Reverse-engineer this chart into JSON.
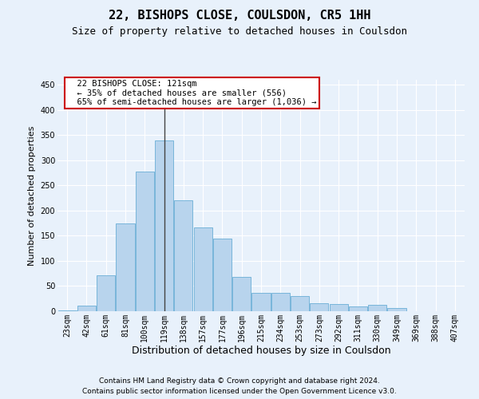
{
  "title": "22, BISHOPS CLOSE, COULSDON, CR5 1HH",
  "subtitle": "Size of property relative to detached houses in Coulsdon",
  "xlabel": "Distribution of detached houses by size in Coulsdon",
  "ylabel": "Number of detached properties",
  "footer_line1": "Contains HM Land Registry data © Crown copyright and database right 2024.",
  "footer_line2": "Contains public sector information licensed under the Open Government Licence v3.0.",
  "categories": [
    "23sqm",
    "42sqm",
    "61sqm",
    "81sqm",
    "100sqm",
    "119sqm",
    "138sqm",
    "157sqm",
    "177sqm",
    "196sqm",
    "215sqm",
    "234sqm",
    "253sqm",
    "273sqm",
    "292sqm",
    "311sqm",
    "330sqm",
    "349sqm",
    "369sqm",
    "388sqm",
    "407sqm"
  ],
  "values": [
    2,
    11,
    72,
    175,
    277,
    340,
    221,
    167,
    145,
    68,
    36,
    36,
    30,
    16,
    15,
    10,
    12,
    6,
    0,
    0,
    0
  ],
  "bar_color": "#b8d4ed",
  "bar_edge_color": "#6aaed6",
  "property_bar_index": 5,
  "annotation_line1": "22 BISHOPS CLOSE: 121sqm",
  "annotation_line2": "← 35% of detached houses are smaller (556)",
  "annotation_line3": "65% of semi-detached houses are larger (1,036) →",
  "annotation_box_color": "#cc0000",
  "vline_color": "#444444",
  "ylim": [
    0,
    460
  ],
  "yticks": [
    0,
    50,
    100,
    150,
    200,
    250,
    300,
    350,
    400,
    450
  ],
  "background_color": "#e8f1fb",
  "plot_bg_color": "#e8f1fb",
  "grid_color": "#ffffff",
  "title_fontsize": 11,
  "subtitle_fontsize": 9,
  "xlabel_fontsize": 9,
  "ylabel_fontsize": 8,
  "tick_fontsize": 7,
  "annotation_fontsize": 7.5,
  "footer_fontsize": 6.5
}
